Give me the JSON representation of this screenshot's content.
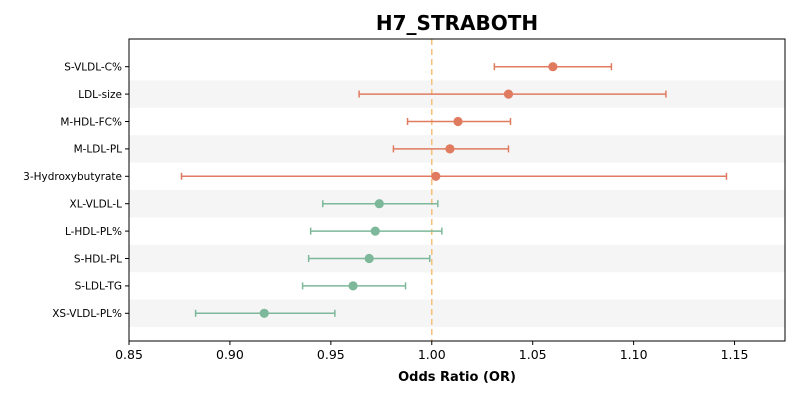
{
  "chart_data": {
    "type": "forest",
    "title": "H7_STRABOTH",
    "xlabel": "Odds Ratio (OR)",
    "xlim": [
      0.85,
      1.175
    ],
    "xticks": [
      0.85,
      0.9,
      0.95,
      1.0,
      1.05,
      1.1,
      1.15
    ],
    "xtick_labels": [
      "0.85",
      "0.90",
      "0.95",
      "1.00",
      "1.05",
      "1.10",
      "1.15"
    ],
    "reference_line": 1.0,
    "colors": {
      "above": "#e07b60",
      "below": "#7db89a",
      "reference": "#f5c07a",
      "stripe": "#f5f5f5"
    },
    "rows": [
      {
        "label": "S-VLDL-C%",
        "or": 1.06,
        "lower": 1.031,
        "upper": 1.089
      },
      {
        "label": "LDL-size",
        "or": 1.038,
        "lower": 0.964,
        "upper": 1.116
      },
      {
        "label": "M-HDL-FC%",
        "or": 1.013,
        "lower": 0.988,
        "upper": 1.039
      },
      {
        "label": "M-LDL-PL",
        "or": 1.009,
        "lower": 0.981,
        "upper": 1.038
      },
      {
        "label": "3-Hydroxybutyrate",
        "or": 1.002,
        "lower": 0.876,
        "upper": 1.146
      },
      {
        "label": "XL-VLDL-L",
        "or": 0.974,
        "lower": 0.946,
        "upper": 1.003
      },
      {
        "label": "L-HDL-PL%",
        "or": 0.972,
        "lower": 0.94,
        "upper": 1.005
      },
      {
        "label": "S-HDL-PL",
        "or": 0.969,
        "lower": 0.939,
        "upper": 0.999
      },
      {
        "label": "S-LDL-TG",
        "or": 0.961,
        "lower": 0.936,
        "upper": 0.987
      },
      {
        "label": "XS-VLDL-PL%",
        "or": 0.917,
        "lower": 0.883,
        "upper": 0.952
      }
    ]
  }
}
